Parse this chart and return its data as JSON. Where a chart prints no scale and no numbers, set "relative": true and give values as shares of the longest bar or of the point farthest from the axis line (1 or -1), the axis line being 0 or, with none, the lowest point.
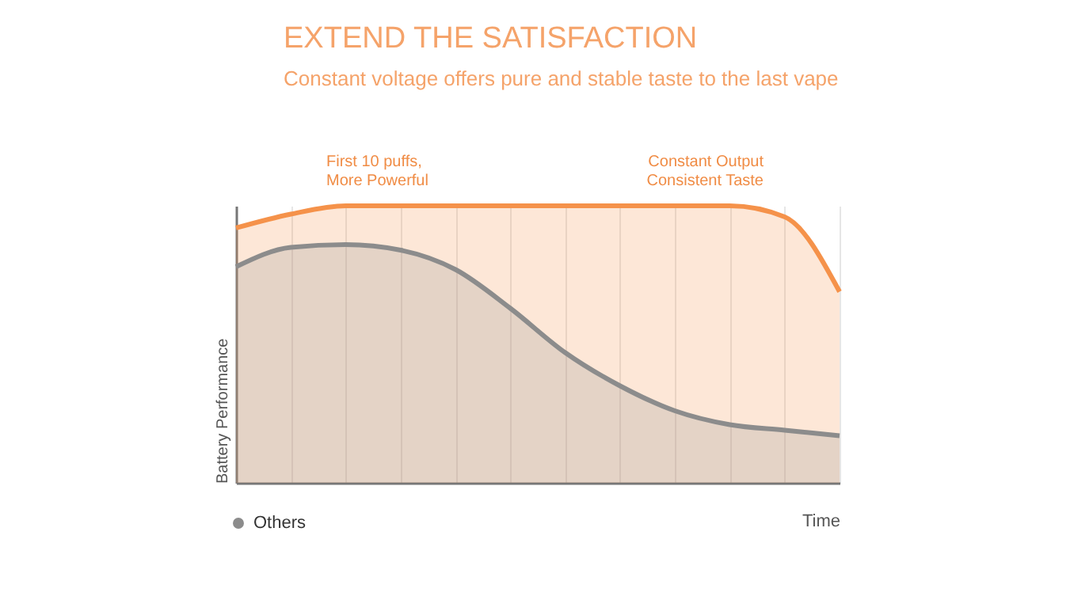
{
  "chart_data": {
    "type": "area",
    "title": "EXTEND THE SATISFACTION",
    "subtitle": "Constant voltage offers pure and stable taste to the last vape",
    "xlabel": "Time",
    "ylabel": "Battery Performance",
    "relative": true,
    "grid": "x",
    "legend": "bottom left",
    "line_style": "solid",
    "annotations": [
      "First 10 puffs,\nMore Powerful",
      "Constant Output\nConsistent Taste"
    ],
    "categories": [
      null,
      null,
      null,
      null,
      null,
      null,
      null,
      null,
      null,
      null,
      null,
      null
    ],
    "series": [
      {
        "color": "#f5924a",
        "values": [
          0.92,
          0.97,
          1,
          1,
          1,
          1,
          1,
          1,
          1,
          1,
          0.96,
          0.69
        ]
      },
      {
        "name": "Others",
        "color": "#8c8c8c",
        "values": [
          0.78,
          0.85,
          0.86,
          0.84,
          0.77,
          0.63,
          0.47,
          0.35,
          0.26,
          0.21,
          0.19,
          0.17
        ]
      }
    ]
  }
}
